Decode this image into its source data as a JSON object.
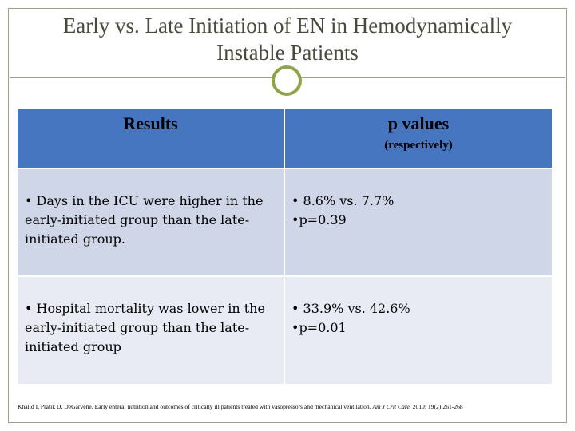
{
  "slide": {
    "title_line1": "Early vs. Late Initiation of EN in Hemodynamically",
    "title_line2": "Instable Patients"
  },
  "table": {
    "header": {
      "col1": "Results",
      "col2": "p values",
      "col2_sub": "(respectively)"
    },
    "rows": [
      {
        "result_lines": [
          "• Days in the ICU were higher in the",
          "early-initiated group than the late-",
          "initiated group."
        ],
        "p_lines": [
          "• 8.6% vs. 7.7%",
          "•p=0.39"
        ]
      },
      {
        "result_lines": [
          "• Hospital mortality was lower in the",
          "early-initiated group than the late-",
          "initiated group"
        ],
        "p_lines": [
          "• 33.9% vs. 42.6%",
          "•p=0.01"
        ]
      }
    ]
  },
  "citation": {
    "text": "Khalid I, Pratik D, DeGarvene. Early enteral nutrition and outcomes of critically ill patients treated with vasopressors and mechanical ventilation. ",
    "journal": "Am J Crit Care.",
    "ref": " 2010; 19(2):261-268"
  },
  "colors": {
    "header_blue": "#4676c0",
    "row_dark": "#cfd6e7",
    "row_light": "#e8ebf3",
    "ring_green": "#8ea448",
    "title_gray": "#484a3c"
  }
}
